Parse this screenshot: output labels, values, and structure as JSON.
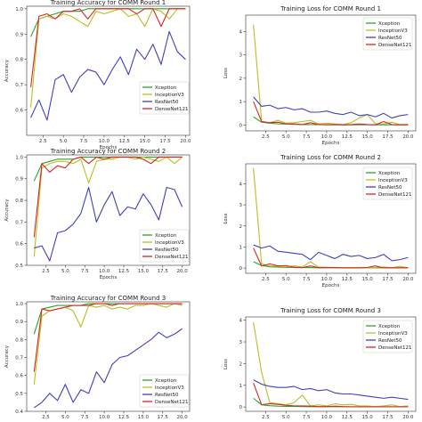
{
  "series_colors": {
    "Xception": "#2ca02c",
    "InceptionV3": "#bcbd22",
    "ResNet50": "#4040b8",
    "DenseNet121": "#d62728"
  },
  "chart_data": [
    {
      "type": "line",
      "title": "Training Accuracy for COMM Round 1",
      "xlabel": "Epochs",
      "ylabel": "Accuracy",
      "xlim": [
        0.5,
        20.5
      ],
      "ylim": [
        0.5,
        1.01
      ],
      "xticks": [
        2.5,
        5.0,
        7.5,
        10.0,
        12.5,
        15.0,
        17.5,
        20.0
      ],
      "xtick_labels": [
        "2.5",
        "5.0",
        "7.5",
        "10.0",
        "12.5",
        "15.0",
        "17.5",
        "20.0"
      ],
      "yticks": [
        0.6,
        0.7,
        0.8,
        0.9,
        1.0
      ],
      "ytick_labels": [
        "0.6",
        "0.7",
        "0.8",
        "0.9",
        "1.0"
      ],
      "legend": "center-right",
      "x": [
        1,
        2,
        3,
        4,
        5,
        6,
        7,
        8,
        9,
        10,
        11,
        12,
        13,
        14,
        15,
        16,
        17,
        18,
        19,
        20
      ],
      "series": [
        {
          "name": "Xception",
          "values": [
            0.89,
            0.96,
            0.97,
            0.98,
            0.99,
            0.99,
            0.99,
            1.0,
            1.0,
            1.0,
            1.0,
            1.0,
            1.0,
            1.0,
            1.0,
            1.0,
            1.0,
            1.0,
            1.0,
            1.0
          ]
        },
        {
          "name": "InceptionV3",
          "values": [
            0.61,
            0.96,
            0.97,
            0.96,
            0.98,
            0.97,
            0.95,
            0.93,
            0.99,
            0.98,
            0.99,
            1.0,
            0.97,
            0.98,
            0.93,
            1.0,
            0.99,
            0.96,
            1.0,
            1.0
          ]
        },
        {
          "name": "ResNet50",
          "values": [
            0.57,
            0.64,
            0.56,
            0.72,
            0.74,
            0.67,
            0.73,
            0.76,
            0.75,
            0.7,
            0.76,
            0.81,
            0.74,
            0.84,
            0.8,
            0.86,
            0.78,
            0.91,
            0.83,
            0.8
          ]
        },
        {
          "name": "DenseNet121",
          "values": [
            0.69,
            0.97,
            0.98,
            0.96,
            0.99,
            0.99,
            1.0,
            0.96,
            1.0,
            1.0,
            1.0,
            1.0,
            1.0,
            0.98,
            1.0,
            1.0,
            0.93,
            1.0,
            1.0,
            1.0
          ]
        }
      ]
    },
    {
      "type": "line",
      "title": "Training Loss for COMM Round 1",
      "xlabel": "Epochs",
      "ylabel": "Loss",
      "xlim": [
        0.05,
        20.95
      ],
      "ylim": [
        -0.25,
        4.7
      ],
      "xticks": [
        2.5,
        5.0,
        7.5,
        10.0,
        12.5,
        15.0,
        17.5,
        20.0
      ],
      "xtick_labels": [
        "2.5",
        "5.0",
        "7.5",
        "10.0",
        "12.5",
        "15.0",
        "17.5",
        "20.0"
      ],
      "yticks": [
        0,
        1,
        2,
        3,
        4
      ],
      "ytick_labels": [
        "0",
        "1",
        "2",
        "3",
        "4"
      ],
      "legend": "top-right",
      "x": [
        1,
        2,
        3,
        4,
        5,
        6,
        7,
        8,
        9,
        10,
        11,
        12,
        13,
        14,
        15,
        16,
        17,
        18,
        19,
        20
      ],
      "series": [
        {
          "name": "Xception",
          "values": [
            0.35,
            0.12,
            0.08,
            0.05,
            0.04,
            0.03,
            0.02,
            0.02,
            0.02,
            0.01,
            0.01,
            0.01,
            0.01,
            0.01,
            0.01,
            0.01,
            0.01,
            0.01,
            0.01,
            0.01
          ]
        },
        {
          "name": "InceptionV3",
          "values": [
            4.3,
            0.15,
            0.1,
            0.2,
            0.08,
            0.1,
            0.15,
            0.2,
            0.05,
            0.08,
            0.05,
            0.02,
            0.1,
            0.3,
            0.45,
            0.05,
            0.05,
            0.12,
            0.02,
            0.03
          ]
        },
        {
          "name": "ResNet50",
          "values": [
            1.2,
            0.8,
            0.85,
            0.7,
            0.75,
            0.65,
            0.7,
            0.55,
            0.55,
            0.6,
            0.5,
            0.45,
            0.55,
            0.4,
            0.45,
            0.35,
            0.5,
            0.3,
            0.4,
            0.45
          ]
        },
        {
          "name": "DenseNet121",
          "values": [
            1.0,
            0.15,
            0.1,
            0.12,
            0.05,
            0.05,
            0.02,
            0.1,
            0.02,
            0.02,
            0.02,
            0.01,
            0.02,
            0.05,
            0.02,
            0.01,
            0.15,
            0.02,
            0.01,
            0.01
          ]
        }
      ]
    },
    {
      "type": "line",
      "title": "Training Accuracy for COMM Round 2",
      "xlabel": "Epochs",
      "ylabel": "Accuracy",
      "xlim": [
        0.05,
        20.95
      ],
      "ylim": [
        0.5,
        1.01
      ],
      "xticks": [
        2.5,
        5.0,
        7.5,
        10.0,
        12.5,
        15.0,
        17.5,
        20.0
      ],
      "xtick_labels": [
        "2.5",
        "5.0",
        "7.5",
        "10.0",
        "12.5",
        "15.0",
        "17.5",
        "20.0"
      ],
      "yticks": [
        0.5,
        0.6,
        0.7,
        0.8,
        0.9,
        1.0
      ],
      "ytick_labels": [
        "0.5",
        "0.6",
        "0.7",
        "0.8",
        "0.9",
        "1.0"
      ],
      "legend": "bottom-right",
      "x": [
        1,
        2,
        3,
        4,
        5,
        6,
        7,
        8,
        9,
        10,
        11,
        12,
        13,
        14,
        15,
        16,
        17,
        18,
        19,
        20
      ],
      "series": [
        {
          "name": "Xception",
          "values": [
            0.89,
            0.97,
            0.98,
            0.99,
            0.99,
            0.99,
            1.0,
            1.0,
            1.0,
            1.0,
            1.0,
            1.0,
            1.0,
            1.0,
            1.0,
            1.0,
            1.0,
            1.0,
            1.0,
            1.0
          ]
        },
        {
          "name": "InceptionV3",
          "values": [
            0.54,
            0.95,
            0.97,
            0.98,
            0.98,
            0.97,
            0.99,
            0.88,
            0.98,
            0.99,
            0.99,
            1.0,
            1.0,
            0.99,
            1.0,
            0.99,
            0.98,
            1.0,
            0.97,
            1.0
          ]
        },
        {
          "name": "ResNet50",
          "values": [
            0.58,
            0.59,
            0.52,
            0.65,
            0.66,
            0.69,
            0.74,
            0.86,
            0.7,
            0.78,
            0.84,
            0.73,
            0.77,
            0.76,
            0.83,
            0.78,
            0.71,
            0.86,
            0.85,
            0.77
          ]
        },
        {
          "name": "DenseNet121",
          "values": [
            0.63,
            0.97,
            0.93,
            0.96,
            0.95,
            0.99,
            1.0,
            0.97,
            1.0,
            0.99,
            1.0,
            1.0,
            1.0,
            1.0,
            0.99,
            0.97,
            1.0,
            1.0,
            1.0,
            1.0
          ]
        }
      ]
    },
    {
      "type": "line",
      "title": "Training Loss for COMM Round 2",
      "xlabel": "Epochs",
      "ylabel": "Loss",
      "xlim": [
        0.05,
        20.95
      ],
      "ylim": [
        -0.25,
        4.95
      ],
      "xticks": [
        2.5,
        5.0,
        7.5,
        10.0,
        12.5,
        15.0,
        17.5,
        20.0
      ],
      "xtick_labels": [
        "2.5",
        "5.0",
        "7.5",
        "10.0",
        "12.5",
        "15.0",
        "17.5",
        "20.0"
      ],
      "yticks": [
        0,
        1,
        2,
        3,
        4
      ],
      "ytick_labels": [
        "0",
        "1",
        "2",
        "3",
        "4"
      ],
      "legend": "top-right",
      "x": [
        1,
        2,
        3,
        4,
        5,
        6,
        7,
        8,
        9,
        10,
        11,
        12,
        13,
        14,
        15,
        16,
        17,
        18,
        19,
        20
      ],
      "series": [
        {
          "name": "Xception",
          "values": [
            0.3,
            0.12,
            0.06,
            0.05,
            0.03,
            0.03,
            0.02,
            0.02,
            0.01,
            0.01,
            0.01,
            0.01,
            0.01,
            0.01,
            0.01,
            0.01,
            0.01,
            0.01,
            0.01,
            0.01
          ]
        },
        {
          "name": "InceptionV3",
          "values": [
            4.75,
            0.2,
            0.1,
            0.08,
            0.06,
            0.1,
            0.05,
            0.3,
            0.05,
            0.03,
            0.03,
            0.02,
            0.02,
            0.03,
            0.02,
            0.03,
            0.05,
            0.02,
            0.08,
            0.02
          ]
        },
        {
          "name": "ResNet50",
          "values": [
            1.1,
            0.95,
            1.05,
            0.8,
            0.75,
            0.7,
            0.65,
            0.4,
            0.75,
            0.6,
            0.45,
            0.65,
            0.55,
            0.6,
            0.45,
            0.5,
            0.65,
            0.35,
            0.4,
            0.5
          ]
        },
        {
          "name": "DenseNet121",
          "values": [
            0.95,
            0.1,
            0.2,
            0.1,
            0.12,
            0.04,
            0.02,
            0.1,
            0.02,
            0.03,
            0.02,
            0.01,
            0.01,
            0.01,
            0.03,
            0.1,
            0.01,
            0.01,
            0.01,
            0.01
          ]
        }
      ]
    },
    {
      "type": "line",
      "title": "Training Accuracy for COMM Round 3",
      "xlabel": "",
      "ylabel": "Accuracy",
      "xlim": [
        0.05,
        20.95
      ],
      "ylim": [
        0.4,
        1.01
      ],
      "xticks": [
        2.5,
        5.0,
        7.5,
        10.0,
        12.5,
        15.0,
        17.5,
        20.0
      ],
      "xtick_labels": [
        "2.5",
        "5.0",
        "7.5",
        "10.0",
        "12.5",
        "15.0",
        "17.5",
        "20.0"
      ],
      "yticks": [
        0.4,
        0.5,
        0.6,
        0.7,
        0.8,
        0.9,
        1.0
      ],
      "ytick_labels": [
        "0.4",
        "0.5",
        "0.6",
        "0.7",
        "0.8",
        "0.9",
        "1.0"
      ],
      "legend": "bottom-right",
      "x": [
        1,
        2,
        3,
        4,
        5,
        6,
        7,
        8,
        9,
        10,
        11,
        12,
        13,
        14,
        15,
        16,
        17,
        18,
        19,
        20
      ],
      "series": [
        {
          "name": "Xception",
          "values": [
            0.83,
            0.97,
            0.98,
            0.99,
            0.99,
            0.99,
            0.99,
            1.0,
            1.0,
            1.0,
            1.0,
            1.0,
            1.0,
            1.0,
            1.0,
            1.0,
            1.0,
            1.0,
            1.0,
            1.0
          ]
        },
        {
          "name": "InceptionV3",
          "values": [
            0.55,
            0.93,
            0.96,
            0.97,
            0.98,
            0.96,
            0.87,
            0.99,
            0.98,
            0.99,
            0.97,
            0.98,
            0.97,
            0.99,
            0.99,
            1.0,
            0.99,
            0.98,
            1.0,
            0.99
          ]
        },
        {
          "name": "ResNet50",
          "values": [
            0.42,
            0.45,
            0.5,
            0.46,
            0.55,
            0.45,
            0.52,
            0.5,
            0.62,
            0.56,
            0.66,
            0.7,
            0.71,
            0.74,
            0.77,
            0.8,
            0.84,
            0.81,
            0.83,
            0.86
          ]
        },
        {
          "name": "DenseNet121",
          "values": [
            0.62,
            0.97,
            0.96,
            0.97,
            0.98,
            0.99,
            0.99,
            0.99,
            1.0,
            1.0,
            0.99,
            1.0,
            1.0,
            1.0,
            1.0,
            1.0,
            1.0,
            1.0,
            1.0,
            1.0
          ]
        }
      ]
    },
    {
      "type": "line",
      "title": "Training Loss for COMM Round 3",
      "xlabel": "",
      "ylabel": "Loss",
      "xlim": [
        0.05,
        20.95
      ],
      "ylim": [
        -0.2,
        4.15
      ],
      "xticks": [
        2.5,
        5.0,
        7.5,
        10.0,
        12.5,
        15.0,
        17.5,
        20.0
      ],
      "xtick_labels": [
        "2.5",
        "5.0",
        "7.5",
        "10.0",
        "12.5",
        "15.0",
        "17.5",
        "20.0"
      ],
      "yticks": [
        0,
        1,
        2,
        3,
        4
      ],
      "ytick_labels": [
        "0",
        "1",
        "2",
        "3",
        "4"
      ],
      "legend": "top-right",
      "x": [
        1,
        2,
        3,
        4,
        5,
        6,
        7,
        8,
        9,
        10,
        11,
        12,
        13,
        14,
        15,
        16,
        17,
        18,
        19,
        20
      ],
      "series": [
        {
          "name": "Xception",
          "values": [
            0.4,
            0.1,
            0.06,
            0.04,
            0.03,
            0.03,
            0.02,
            0.01,
            0.01,
            0.01,
            0.01,
            0.01,
            0.01,
            0.01,
            0.01,
            0.01,
            0.01,
            0.01,
            0.01,
            0.01
          ]
        },
        {
          "name": "InceptionV3",
          "values": [
            3.9,
            1.6,
            0.2,
            0.15,
            0.1,
            0.2,
            0.55,
            0.05,
            0.1,
            0.05,
            0.15,
            0.1,
            0.12,
            0.05,
            0.05,
            0.02,
            0.05,
            0.1,
            0.02,
            0.05
          ]
        },
        {
          "name": "ResNet50",
          "values": [
            1.25,
            1.05,
            0.95,
            0.9,
            0.9,
            0.95,
            0.8,
            0.85,
            0.75,
            0.8,
            0.65,
            0.6,
            0.6,
            0.55,
            0.5,
            0.45,
            0.4,
            0.45,
            0.4,
            0.35
          ]
        },
        {
          "name": "DenseNet121",
          "values": [
            1.1,
            0.1,
            0.15,
            0.12,
            0.08,
            0.05,
            0.05,
            0.04,
            0.02,
            0.02,
            0.04,
            0.02,
            0.01,
            0.01,
            0.01,
            0.01,
            0.01,
            0.01,
            0.01,
            0.01
          ]
        }
      ]
    }
  ]
}
